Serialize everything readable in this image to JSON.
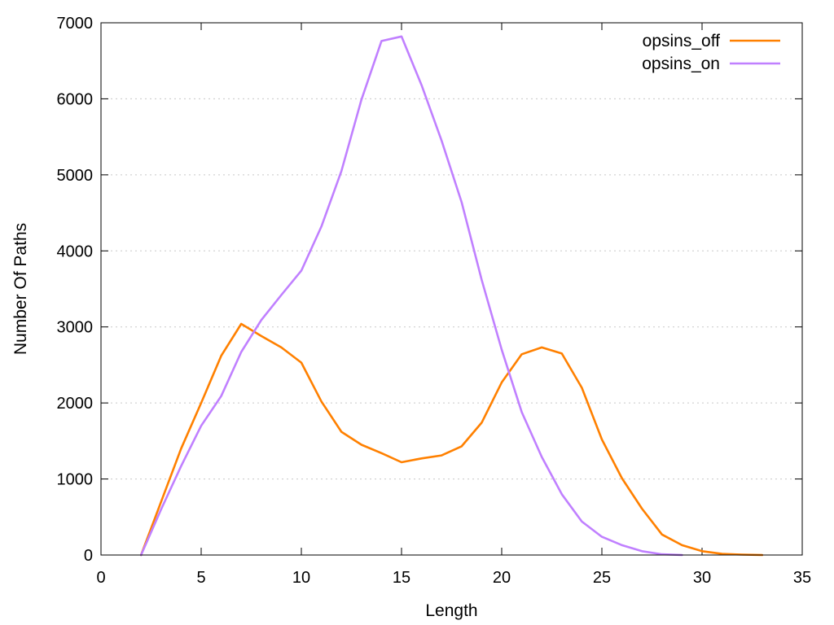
{
  "chart_data": {
    "type": "line",
    "title": "",
    "xlabel": "Length",
    "ylabel": "Number Of Paths",
    "xlim": [
      0,
      35
    ],
    "ylim": [
      0,
      7000
    ],
    "xticks": [
      "0",
      "5",
      "10",
      "15",
      "20",
      "25",
      "30",
      "35"
    ],
    "yticks": [
      "0",
      "1000",
      "2000",
      "3000",
      "4000",
      "5000",
      "6000",
      "7000"
    ],
    "grid": "horizontal dotted",
    "legend_position": "top-right",
    "series": [
      {
        "name": "opsins_off",
        "color": "#ff8000",
        "x": [
          2,
          3,
          4,
          5,
          6,
          7,
          8,
          9,
          10,
          11,
          12,
          13,
          14,
          15,
          16,
          17,
          18,
          19,
          20,
          21,
          22,
          23,
          24,
          25,
          26,
          27,
          28,
          29,
          30,
          31,
          32,
          33
        ],
        "y": [
          0,
          700,
          1400,
          2000,
          2620,
          3040,
          2880,
          2730,
          2530,
          2020,
          1620,
          1450,
          1340,
          1220,
          1270,
          1310,
          1430,
          1740,
          2270,
          2640,
          2730,
          2650,
          2200,
          1520,
          1010,
          610,
          270,
          130,
          50,
          15,
          5,
          0
        ]
      },
      {
        "name": "opsins_on",
        "color": "#c080ff",
        "x": [
          2,
          3,
          4,
          5,
          6,
          7,
          8,
          9,
          10,
          11,
          12,
          13,
          14,
          15,
          16,
          17,
          18,
          19,
          20,
          21,
          22,
          23,
          24,
          25,
          26,
          27,
          28,
          29
        ],
        "y": [
          0,
          600,
          1170,
          1700,
          2090,
          2670,
          3090,
          3420,
          3740,
          4320,
          5050,
          5990,
          6760,
          6820,
          6180,
          5450,
          4640,
          3620,
          2700,
          1880,
          1290,
          800,
          440,
          240,
          130,
          50,
          10,
          0
        ]
      }
    ]
  }
}
